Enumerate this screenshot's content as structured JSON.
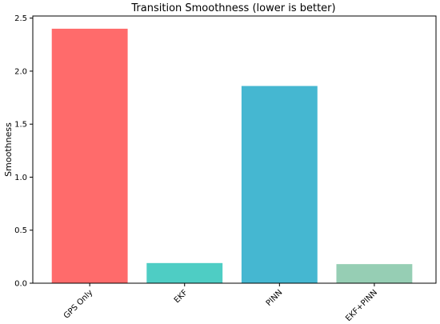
{
  "chart_data": {
    "type": "bar",
    "title": "Transition Smoothness (lower is better)",
    "xlabel": "",
    "ylabel": "Smoothness",
    "categories": [
      "GPS Only",
      "EKF",
      "PINN",
      "EKF+PINN"
    ],
    "values": [
      2.4,
      0.19,
      1.86,
      0.18
    ],
    "colors": [
      "#ff6b6b",
      "#4ecdc4",
      "#45b7d1",
      "#96ceb4"
    ],
    "ylim": [
      0,
      2.52
    ],
    "yticks": [
      0.0,
      0.5,
      1.0,
      1.5,
      2.0,
      2.5
    ],
    "ytick_labels": [
      "0.0",
      "0.5",
      "1.0",
      "1.5",
      "2.0",
      "2.5"
    ],
    "grid": false,
    "legend": "none"
  }
}
